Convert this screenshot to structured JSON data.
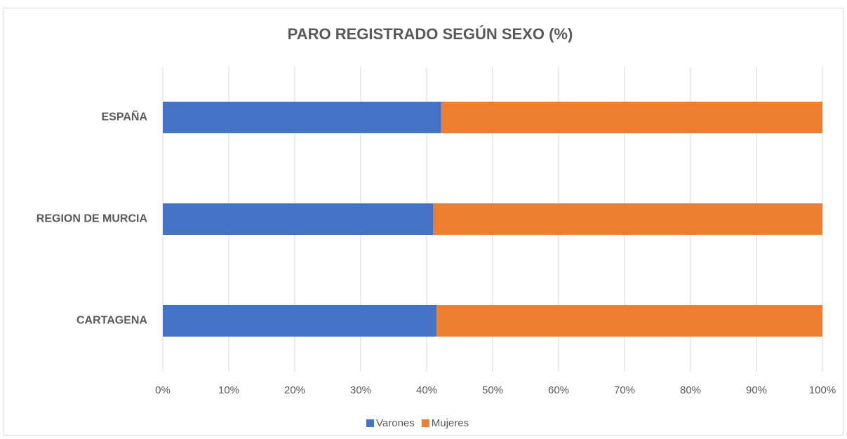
{
  "chart_data": {
    "type": "stacked_barh",
    "title": "PARO REGISTRADO SEGÚN SEXO (%)",
    "categories": [
      "ESPAÑA",
      "REGION DE MURCIA",
      "CARTAGENA"
    ],
    "series": [
      {
        "name": "Varones",
        "color": "#4472c4",
        "values": [
          42.2,
          41.0,
          41.5
        ]
      },
      {
        "name": "Mujeres",
        "color": "#ed7d31",
        "values": [
          57.8,
          59.0,
          58.5
        ]
      }
    ],
    "xlim": [
      0,
      100
    ],
    "xticks": [
      {
        "value": 0,
        "label": "0%"
      },
      {
        "value": 10,
        "label": "10%"
      },
      {
        "value": 20,
        "label": "20%"
      },
      {
        "value": 30,
        "label": "30%"
      },
      {
        "value": 40,
        "label": "40%"
      },
      {
        "value": 50,
        "label": "50%"
      },
      {
        "value": 60,
        "label": "60%"
      },
      {
        "value": 70,
        "label": "70%"
      },
      {
        "value": 80,
        "label": "80%"
      },
      {
        "value": 90,
        "label": "90%"
      },
      {
        "value": 100,
        "label": "100%"
      }
    ],
    "grid": true,
    "legend": "bottom"
  }
}
